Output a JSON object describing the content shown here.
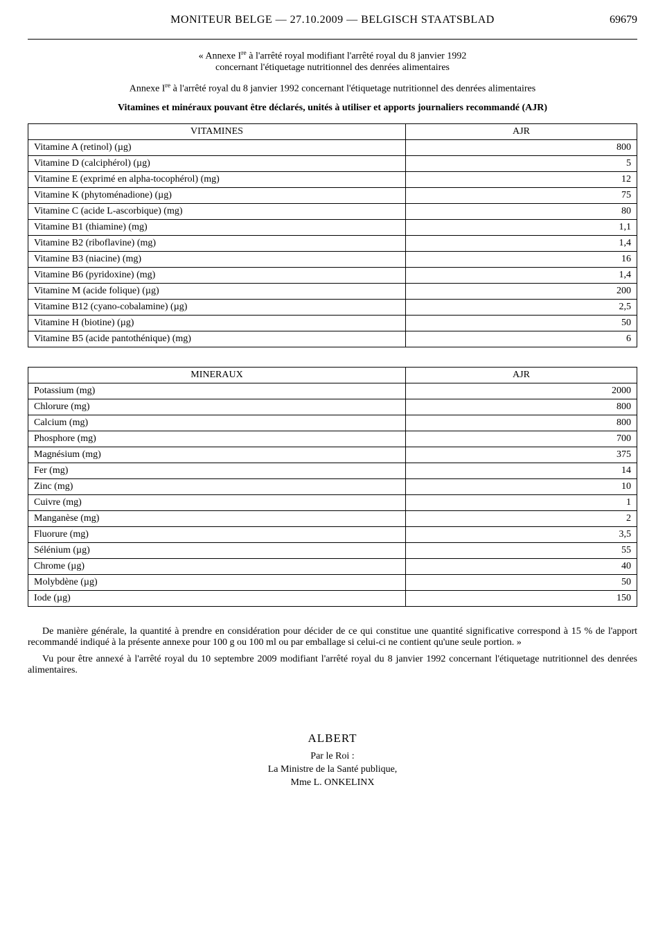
{
  "header": {
    "title": "MONITEUR BELGE — 27.10.2009 — BELGISCH STAATSBLAD",
    "pageNumber": "69679"
  },
  "intro": {
    "line1a": "« Annexe I",
    "line1b": " à l'arrêté royal modifiant l'arrêté royal du 8 janvier 1992",
    "line1c": "concernant l'étiquetage nutritionnel des denrées alimentaires",
    "line2a": "Annexe I",
    "line2b": " à l'arrêté royal du 8 janvier 1992 concernant l'étiquetage nutritionnel des denrées alimentaires",
    "line3": "Vitamines et minéraux pouvant être déclarés, unités à utiliser et apports journaliers recommandé (AJR)",
    "sup": "re"
  },
  "vitamines": {
    "header_name": "VITAMINES",
    "header_val": "AJR",
    "rows": [
      {
        "name": "Vitamine A (retinol) (µg)",
        "val": "800"
      },
      {
        "name": "Vitamine D (calciphérol) (µg)",
        "val": "5"
      },
      {
        "name": "Vitamine E (exprimé en alpha-tocophérol) (mg)",
        "val": "12"
      },
      {
        "name": "Vitamine K (phytoménadione) (µg)",
        "val": "75"
      },
      {
        "name": "Vitamine C (acide L-ascorbique) (mg)",
        "val": "80"
      },
      {
        "name": "Vitamine B1 (thiamine) (mg)",
        "val": "1,1"
      },
      {
        "name": "Vitamine B2 (riboflavine) (mg)",
        "val": "1,4"
      },
      {
        "name": "Vitamine B3 (niacine) (mg)",
        "val": "16"
      },
      {
        "name": "Vitamine B6 (pyridoxine) (mg)",
        "val": "1,4"
      },
      {
        "name": "Vitamine M (acide folique) (µg)",
        "val": "200"
      },
      {
        "name": "Vitamine B12 (cyano-cobalamine) (µg)",
        "val": "2,5"
      },
      {
        "name": "Vitamine H (biotine) (µg)",
        "val": "50"
      },
      {
        "name": "Vitamine B5 (acide pantothénique) (mg)",
        "val": "6"
      }
    ]
  },
  "mineraux": {
    "header_name": "MINERAUX",
    "header_val": "AJR",
    "rows": [
      {
        "name": "Potassium (mg)",
        "val": "2000"
      },
      {
        "name": "Chlorure (mg)",
        "val": "800"
      },
      {
        "name": "Calcium (mg)",
        "val": "800"
      },
      {
        "name": "Phosphore (mg)",
        "val": "700"
      },
      {
        "name": "Magnésium (mg)",
        "val": "375"
      },
      {
        "name": "Fer (mg)",
        "val": "14"
      },
      {
        "name": "Zinc (mg)",
        "val": "10"
      },
      {
        "name": "Cuivre (mg)",
        "val": "1"
      },
      {
        "name": "Manganèse (mg)",
        "val": "2"
      },
      {
        "name": "Fluorure (mg)",
        "val": "3,5"
      },
      {
        "name": "Sélénium (µg)",
        "val": "55"
      },
      {
        "name": "Chrome (µg)",
        "val": "40"
      },
      {
        "name": "Molybdène (µg)",
        "val": "50"
      },
      {
        "name": "Iode (µg)",
        "val": "150"
      }
    ]
  },
  "footer": {
    "p1": "De manière générale, la quantité à prendre en considération pour décider de ce qui constitue une quantité significative correspond à 15 % de l'apport recommandé indiqué à la présente annexe pour 100 g ou 100 ml ou par emballage si celui-ci ne contient qu'une seule portion. »",
    "p2": "Vu pour être annexé à l'arrêté royal du 10 septembre 2009 modifiant l'arrêté royal du 8 janvier 1992 concernant l'étiquetage nutritionnel des denrées alimentaires."
  },
  "signature": {
    "king": "ALBERT",
    "byking": "Par le Roi :",
    "minister_title": "La Ministre de la Santé publique,",
    "minister_name": "Mme L. ONKELINX"
  }
}
